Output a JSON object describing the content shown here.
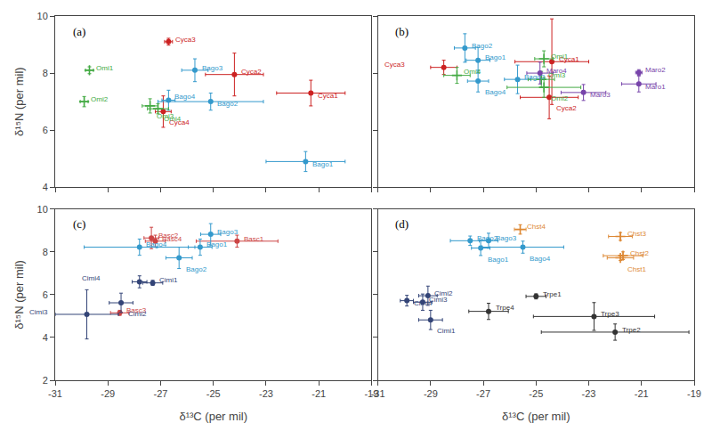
{
  "chart_data": [
    {
      "type": "scatter",
      "title": "(a)",
      "ylabel": "δ¹⁵N (per mil)",
      "x": [
        -21.3,
        -24.2,
        -26.7,
        -26.9,
        -21.5,
        -25.1,
        -25.7,
        -26.7,
        -29.7,
        -29.9,
        -27.4,
        -27.1
      ],
      "values": [
        7.3,
        7.95,
        9.1,
        6.65,
        4.9,
        7.0,
        8.1,
        7.05,
        8.1,
        7.0,
        6.85,
        6.75
      ],
      "xerr": [
        1.3,
        1.1,
        0.15,
        0.3,
        1.5,
        2.0,
        0.5,
        0.25,
        0.15,
        0.15,
        0.3,
        0.4
      ],
      "yerr": [
        0.45,
        0.75,
        0.12,
        0.55,
        0.35,
        0.3,
        0.4,
        0.35,
        0.12,
        0.18,
        0.25,
        0.18
      ],
      "annotations": [
        "Cyca1",
        "Cyca2",
        "Cyca3",
        "Cyca4",
        "Bago1",
        "Bago2",
        "Bago3",
        "Bago4",
        "Omi1",
        "Omi2",
        "Omi3",
        "Omi4"
      ],
      "colors": [
        "#cc2222",
        "#cc2222",
        "#cc2222",
        "#cc2222",
        "#3399cc",
        "#3399cc",
        "#3399cc",
        "#3399cc",
        "#44aa44",
        "#44aa44",
        "#44aa44",
        "#44aa44"
      ],
      "markers": [
        "circle",
        "circle",
        "circle",
        "circle",
        "circle",
        "circle",
        "circle",
        "circle",
        "plus",
        "plus",
        "plus",
        "plus"
      ],
      "xlim": [
        -31.0,
        -19.0
      ],
      "ylim": [
        4.0,
        10.0
      ],
      "xticks": [
        -31,
        -29,
        -27,
        -25,
        -23,
        -21,
        -19
      ],
      "yticks": [
        4,
        6,
        8,
        10
      ],
      "grid": false,
      "tick_labels": "y"
    },
    {
      "type": "scatter",
      "title": "(b)",
      "x": [
        -24.4,
        -24.5,
        -28.5,
        -27.2,
        -27.7,
        -25.7,
        -27.2,
        -24.7,
        -24.7,
        -24.8,
        -28.0,
        -21.1,
        -21.1,
        -23.2,
        -24.85
      ],
      "values": [
        8.4,
        7.15,
        8.2,
        8.45,
        8.88,
        7.78,
        7.72,
        8.5,
        7.5,
        7.78,
        7.92,
        7.62,
        8.02,
        7.32,
        8.0
      ],
      "xerr": [
        1.4,
        1.1,
        0.5,
        0.45,
        0.4,
        0.5,
        0.4,
        0.35,
        1.4,
        0.5,
        0.5,
        0.65,
        0.12,
        0.85,
        0.5
      ],
      "yerr": [
        1.5,
        0.75,
        0.25,
        0.45,
        0.5,
        0.5,
        0.38,
        0.28,
        0.35,
        0.28,
        0.28,
        0.28,
        0.1,
        0.28,
        0.38
      ],
      "annotations": [
        "Cyca1",
        "Cyca2",
        "Cyca3",
        "Bago1",
        "Bago2",
        "Bago3",
        "Bago4",
        "Omi1",
        "Omi2",
        "Omi3",
        "Omi4",
        "Maro1",
        "Maro2",
        "Maro3",
        "Maro4"
      ],
      "colors": [
        "#cc2222",
        "#cc2222",
        "#cc2222",
        "#3399cc",
        "#3399cc",
        "#3399cc",
        "#3399cc",
        "#44aa44",
        "#44aa44",
        "#44aa44",
        "#44aa44",
        "#7744aa",
        "#7744aa",
        "#7744aa",
        "#7744aa"
      ],
      "markers": [
        "circle",
        "circle",
        "circle",
        "circle",
        "circle",
        "circle",
        "circle",
        "plus",
        "plus",
        "plus",
        "plus",
        "circle",
        "circle",
        "circle",
        "circle"
      ],
      "xlim": [
        -31.0,
        -19.0
      ],
      "ylim": [
        4.0,
        10.0
      ],
      "xticks": [
        -31,
        -29,
        -27,
        -25,
        -23,
        -21,
        -19
      ],
      "yticks": [
        4,
        6,
        8,
        10
      ],
      "grid": false,
      "tick_labels": false
    },
    {
      "type": "scatter",
      "title": "(c)",
      "xlabel": "δ¹³C (per mil)",
      "ylabel": "δ¹⁵N (per mil)",
      "x": [
        -24.1,
        -27.35,
        -28.55,
        -27.2,
        -25.5,
        -26.3,
        -25.1,
        -27.8,
        -27.3,
        -28.5,
        -29.8,
        -27.8
      ],
      "values": [
        8.5,
        8.65,
        5.15,
        8.5,
        8.22,
        7.72,
        8.82,
        8.22,
        6.55,
        5.62,
        5.08,
        6.6
      ],
      "xerr": [
        1.55,
        0.28,
        0.35,
        0.38,
        0.45,
        0.5,
        0.38,
        2.1,
        0.38,
        0.45,
        1.2,
        0.28
      ],
      "yerr": [
        0.28,
        0.5,
        0.12,
        0.28,
        0.38,
        0.5,
        0.5,
        0.38,
        0.12,
        0.45,
        1.15,
        0.28
      ],
      "annotations": [
        "Basc1",
        "Basc2",
        "Basc3",
        "Basc4",
        "Bago1",
        "Bago2",
        "Bago3",
        "Bago4",
        "Cimi1",
        "Cimi2",
        "Cimi3",
        "Cimi4"
      ],
      "colors": [
        "#cc4444",
        "#cc4444",
        "#cc4444",
        "#cc4444",
        "#3399cc",
        "#3399cc",
        "#3399cc",
        "#3399cc",
        "#334477",
        "#334477",
        "#334477",
        "#334477"
      ],
      "markers": [
        "circle",
        "circle",
        "circle",
        "circle",
        "circle",
        "circle",
        "circle",
        "circle",
        "circle",
        "circle",
        "circle",
        "circle"
      ],
      "xlim": [
        -31.0,
        -19.0
      ],
      "ylim": [
        2.0,
        10.0
      ],
      "xticks": [
        -31,
        -29,
        -27,
        -25,
        -23,
        -21,
        -19
      ],
      "yticks": [
        2,
        4,
        6,
        8,
        10
      ],
      "grid": false
    },
    {
      "type": "scatter",
      "title": "(d)",
      "xlabel": "δ¹³C (per mil)",
      "x": [
        -25.6,
        -21.8,
        -21.7,
        -21.8,
        -27.1,
        -27.5,
        -26.8,
        -25.5,
        -29.0,
        -29.1,
        -29.3,
        -29.9,
        -25.0,
        -22.0,
        -22.8,
        -26.8
      ],
      "values": [
        9.05,
        8.72,
        7.82,
        7.72,
        8.18,
        8.52,
        8.52,
        8.22,
        4.82,
        5.95,
        5.65,
        5.72,
        5.92,
        4.25,
        4.98,
        5.22
      ],
      "xerr": [
        0.22,
        0.45,
        0.75,
        0.5,
        0.35,
        0.75,
        0.35,
        1.55,
        0.45,
        0.35,
        0.35,
        0.25,
        0.38,
        2.8,
        2.3,
        0.75
      ],
      "yerr": [
        0.22,
        0.18,
        0.18,
        0.12,
        0.35,
        0.22,
        0.35,
        0.28,
        0.45,
        0.45,
        0.38,
        0.25,
        0.12,
        0.38,
        0.65,
        0.38
      ],
      "annotations": [
        "Chst4",
        "Chst3",
        "Chst2",
        "Chst1",
        "Bago1",
        "Bago2",
        "Bago3",
        "Bago4",
        "Cimi1",
        "Cimi2",
        "Cimi3",
        "Cimi4",
        "Trpe1",
        "Trpe2",
        "Trpe3",
        "Trpe4"
      ],
      "colors": [
        "#dd8833",
        "#dd8833",
        "#dd8833",
        "#dd8833",
        "#3399cc",
        "#3399cc",
        "#3399cc",
        "#3399cc",
        "#334477",
        "#334477",
        "#334477",
        "#334477",
        "#333333",
        "#333333",
        "#333333",
        "#333333"
      ],
      "markers": [
        "plus",
        "plus",
        "plus",
        "plus",
        "circle",
        "circle",
        "circle",
        "circle",
        "circle",
        "circle",
        "circle",
        "circle",
        "circle",
        "circle",
        "circle",
        "circle"
      ],
      "xlim": [
        -31.0,
        -19.0
      ],
      "ylim": [
        2.0,
        10.0
      ],
      "xticks": [
        -31,
        -29,
        -27,
        -25,
        -23,
        -21,
        -19
      ],
      "yticks": [
        2,
        4,
        6,
        8,
        10
      ],
      "grid": false,
      "tick_labels": "x"
    }
  ]
}
